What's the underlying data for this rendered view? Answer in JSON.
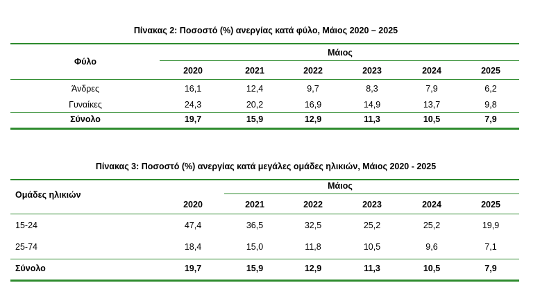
{
  "tables": [
    {
      "title": "Πίνακας 2: Ποσοστό (%) ανεργίας κατά φύλο, Μάιος 2020 – 2025",
      "row_header": "Φύλο",
      "group_header": "Μάιος",
      "years": [
        "2020",
        "2021",
        "2022",
        "2023",
        "2024",
        "2025"
      ],
      "rows": [
        [
          "Άνδρες",
          "16,1",
          "12,4",
          "9,7",
          "8,3",
          "7,9",
          "6,2"
        ],
        [
          "Γυναίκες",
          "24,3",
          "20,2",
          "16,9",
          "14,9",
          "13,7",
          "9,8"
        ],
        [
          "Σύνολο",
          "19,7",
          "15,9",
          "12,9",
          "11,3",
          "10,5",
          "7,9"
        ]
      ]
    },
    {
      "title": "Πίνακας 3: Ποσοστό (%) ανεργίας κατά μεγάλες ομάδες ηλικιών, Μάιος 2020 - 2025",
      "row_header": "Ομάδες ηλικιών",
      "group_header": "Μάιος",
      "years": [
        "2020",
        "2021",
        "2022",
        "2023",
        "2024",
        "2025"
      ],
      "rows": [
        [
          "15-24",
          "47,4",
          "36,5",
          "32,5",
          "25,2",
          "25,2",
          "19,9"
        ],
        [
          "25-74",
          "18,4",
          "15,0",
          "11,8",
          "10,5",
          "9,6",
          "7,1"
        ],
        [
          "Σύνολο",
          "19,7",
          "15,9",
          "12,9",
          "11,3",
          "10,5",
          "7,9"
        ]
      ]
    }
  ]
}
